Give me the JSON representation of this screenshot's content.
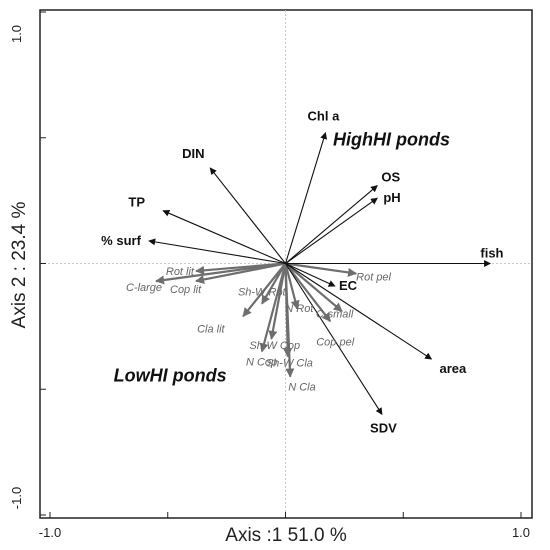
{
  "chart_data": {
    "type": "scatter",
    "subtype": "rda-biplot",
    "title": "",
    "xlabel": "Axis :1 51.0 %",
    "ylabel": "Axis 2 : 23.4 %",
    "xlim": [
      -1.0,
      1.0
    ],
    "ylim": [
      -1.0,
      1.0
    ],
    "x_tick_labels": [
      "-1.0",
      "1.0"
    ],
    "y_tick_labels": [
      "1.0",
      "-1.0"
    ],
    "grid": false,
    "zero_lines": true,
    "colors": {
      "environmental": "#111111",
      "species": "#6e6e6e",
      "zero_lines": "#bbbbbb"
    },
    "series": [
      {
        "group": "environmental",
        "arrows": [
          {
            "label": "Chl a",
            "x": 0.17,
            "y": 0.52
          },
          {
            "label": "OS",
            "x": 0.39,
            "y": 0.31
          },
          {
            "label": "pH",
            "x": 0.39,
            "y": 0.26
          },
          {
            "label": "fish",
            "x": 0.87,
            "y": 0.0
          },
          {
            "label": "EC",
            "x": 0.21,
            "y": -0.09
          },
          {
            "label": "area",
            "x": 0.62,
            "y": -0.38
          },
          {
            "label": "SDV",
            "x": 0.41,
            "y": -0.6
          },
          {
            "label": "DIN",
            "x": -0.32,
            "y": 0.38
          },
          {
            "label": "TP",
            "x": -0.52,
            "y": 0.21
          },
          {
            "label": "% surf",
            "x": -0.58,
            "y": 0.09
          }
        ]
      },
      {
        "group": "species",
        "arrows": [
          {
            "label": "Rot lit",
            "x": -0.38,
            "y": -0.03
          },
          {
            "label": "C-large",
            "x": -0.55,
            "y": -0.07
          },
          {
            "label": "Cop lit",
            "x": -0.38,
            "y": -0.07
          },
          {
            "label": "Cla lit",
            "x": -0.18,
            "y": -0.21
          },
          {
            "label": "Sh-W Rot",
            "x": -0.1,
            "y": -0.16
          },
          {
            "label": "N Rot",
            "x": 0.05,
            "y": -0.18
          },
          {
            "label": "Sh-W Cop",
            "x": -0.06,
            "y": -0.3
          },
          {
            "label": "N Cop",
            "x": -0.1,
            "y": -0.35
          },
          {
            "label": "Sh-W Cla",
            "x": 0.01,
            "y": -0.37
          },
          {
            "label": "N Cla",
            "x": 0.02,
            "y": -0.45
          },
          {
            "label": "Rot pel",
            "x": 0.3,
            "y": -0.04
          },
          {
            "label": "C-small",
            "x": 0.24,
            "y": -0.19
          },
          {
            "label": "Cop pel",
            "x": 0.19,
            "y": -0.23
          }
        ]
      }
    ],
    "annotations": [
      {
        "text": "HighHI ponds",
        "x": 0.45,
        "y": 0.47
      },
      {
        "text": "LowHI ponds",
        "x": -0.49,
        "y": -0.47
      }
    ]
  }
}
